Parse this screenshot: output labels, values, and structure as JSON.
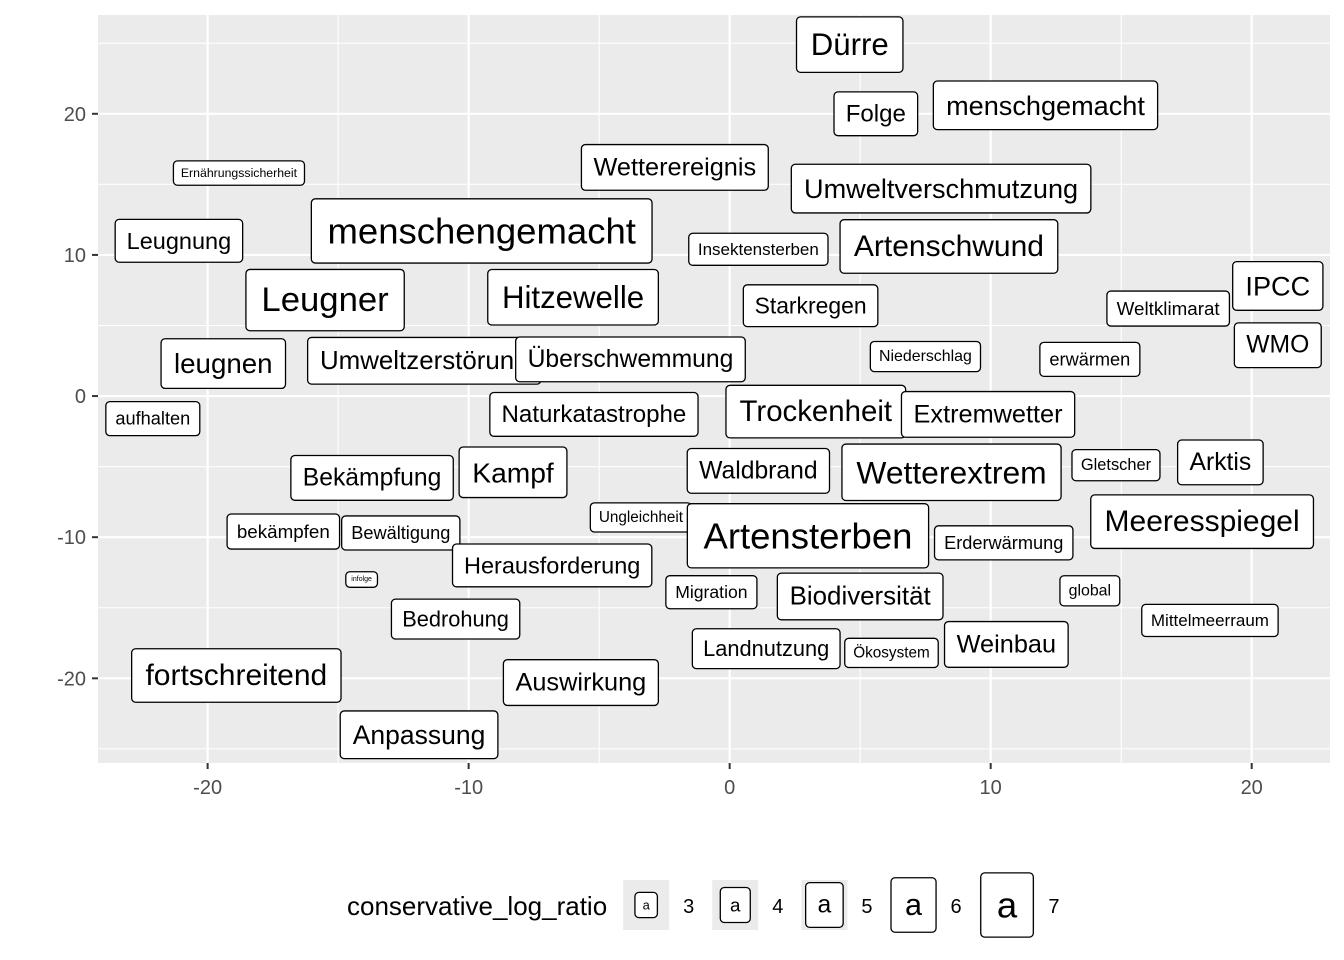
{
  "chart_data": {
    "type": "scatter",
    "geom": "label",
    "xlim": [
      -24.2,
      23
    ],
    "ylim": [
      -26,
      27
    ],
    "x_ticks": [
      -20,
      -10,
      0,
      10,
      20
    ],
    "y_ticks": [
      20,
      10,
      0,
      -10,
      -20
    ],
    "x_tick_labels": [
      "-20",
      "-10",
      "0",
      "10",
      "20"
    ],
    "y_tick_labels": [
      "20",
      "10",
      "0",
      "-10",
      "-20"
    ],
    "grid": true,
    "legend_position": "bottom",
    "legend": {
      "title": "conservative_log_ratio",
      "keys": [
        {
          "value": 3,
          "label": "3"
        },
        {
          "value": 4,
          "label": "4"
        },
        {
          "value": 5,
          "label": "5"
        },
        {
          "value": 6,
          "label": "6"
        },
        {
          "value": 7,
          "label": "7"
        }
      ],
      "glyph": "a"
    },
    "points": [
      {
        "label": "Dürre",
        "x": 4.6,
        "y": 24.9,
        "size": 6.1
      },
      {
        "label": "Folge",
        "x": 5.6,
        "y": 20.0,
        "size": 4.9
      },
      {
        "label": "menschgemacht",
        "x": 12.1,
        "y": 20.6,
        "size": 5.4
      },
      {
        "label": "Ernährungssicherheit",
        "x": -18.8,
        "y": 15.8,
        "size": 2.9
      },
      {
        "label": "Wetterereignis",
        "x": -2.1,
        "y": 16.2,
        "size": 5.1
      },
      {
        "label": "Umweltverschmutzung",
        "x": 8.1,
        "y": 14.7,
        "size": 5.4
      },
      {
        "label": "Leugnung",
        "x": -21.1,
        "y": 11.0,
        "size": 4.8
      },
      {
        "label": "menschengemacht",
        "x": -9.5,
        "y": 11.7,
        "size": 7.0
      },
      {
        "label": "Insektensterben",
        "x": 1.1,
        "y": 10.4,
        "size": 3.7
      },
      {
        "label": "Artenschwund",
        "x": 8.4,
        "y": 10.6,
        "size": 5.9
      },
      {
        "label": "IPCC",
        "x": 21.0,
        "y": 7.8,
        "size": 5.4
      },
      {
        "label": "Weltklimarat",
        "x": 16.8,
        "y": 6.2,
        "size": 4.0
      },
      {
        "label": "Leugner",
        "x": -15.5,
        "y": 6.8,
        "size": 6.7
      },
      {
        "label": "Hitzewelle",
        "x": -6.0,
        "y": 7.0,
        "size": 6.1
      },
      {
        "label": "Starkregen",
        "x": 3.1,
        "y": 6.4,
        "size": 4.7
      },
      {
        "label": "WMO",
        "x": 21.0,
        "y": 3.6,
        "size": 5.0
      },
      {
        "label": "leugnen",
        "x": -19.4,
        "y": 2.3,
        "size": 5.5
      },
      {
        "label": "Umweltzerstörung",
        "x": -11.7,
        "y": 2.5,
        "size": 5.2
      },
      {
        "label": "Überschwemmung",
        "x": -3.8,
        "y": 2.6,
        "size": 5.0
      },
      {
        "label": "Niederschlag",
        "x": 7.5,
        "y": 2.8,
        "size": 3.5
      },
      {
        "label": "erwärmen",
        "x": 13.8,
        "y": 2.6,
        "size": 3.9
      },
      {
        "label": "aufhalten",
        "x": -22.1,
        "y": -1.6,
        "size": 3.9
      },
      {
        "label": "Naturkatastrophe",
        "x": -5.2,
        "y": -1.3,
        "size": 4.9
      },
      {
        "label": "Trockenheit",
        "x": 3.3,
        "y": -1.1,
        "size": 5.8
      },
      {
        "label": "Extremwetter",
        "x": 9.9,
        "y": -1.3,
        "size": 5.1
      },
      {
        "label": "Bekämpfung",
        "x": -13.7,
        "y": -5.8,
        "size": 5.0
      },
      {
        "label": "Kampf",
        "x": -8.3,
        "y": -5.4,
        "size": 5.6
      },
      {
        "label": "Waldbrand",
        "x": 1.1,
        "y": -5.3,
        "size": 5.0
      },
      {
        "label": "Wetterextrem",
        "x": 8.5,
        "y": -5.4,
        "size": 6.2
      },
      {
        "label": "Gletscher",
        "x": 14.8,
        "y": -4.9,
        "size": 3.6
      },
      {
        "label": "Arktis",
        "x": 18.8,
        "y": -4.7,
        "size": 5.0
      },
      {
        "label": "bekämpfen",
        "x": -17.1,
        "y": -9.6,
        "size": 4.0
      },
      {
        "label": "Bewältigung",
        "x": -12.6,
        "y": -9.7,
        "size": 3.9
      },
      {
        "label": "Ungleichheit",
        "x": -3.4,
        "y": -8.6,
        "size": 3.4
      },
      {
        "label": "Artensterben",
        "x": 3.0,
        "y": -9.9,
        "size": 7.0
      },
      {
        "label": "Erderwärmung",
        "x": 10.5,
        "y": -10.4,
        "size": 3.9
      },
      {
        "label": "Meeresspiegel",
        "x": 18.1,
        "y": -8.9,
        "size": 5.9
      },
      {
        "label": "infolge",
        "x": -14.1,
        "y": -13.0,
        "size": 2.0
      },
      {
        "label": "Herausforderung",
        "x": -6.8,
        "y": -12.0,
        "size": 4.8
      },
      {
        "label": "Migration",
        "x": -0.7,
        "y": -13.9,
        "size": 3.8
      },
      {
        "label": "Biodiversität",
        "x": 5.0,
        "y": -14.2,
        "size": 5.2
      },
      {
        "label": "global",
        "x": 13.8,
        "y": -13.8,
        "size": 3.5
      },
      {
        "label": "Bedrohung",
        "x": -10.5,
        "y": -15.8,
        "size": 4.5
      },
      {
        "label": "Mittelmeerraum",
        "x": 18.4,
        "y": -15.9,
        "size": 3.7
      },
      {
        "label": "Landnutzung",
        "x": 1.4,
        "y": -17.9,
        "size": 4.5
      },
      {
        "label": "Ökosystem",
        "x": 6.2,
        "y": -18.2,
        "size": 3.4
      },
      {
        "label": "Weinbau",
        "x": 10.6,
        "y": -17.6,
        "size": 5.1
      },
      {
        "label": "fortschreitend",
        "x": -18.9,
        "y": -19.8,
        "size": 5.9
      },
      {
        "label": "Auswirkung",
        "x": -5.7,
        "y": -20.3,
        "size": 5.1
      },
      {
        "label": "Anpassung",
        "x": -11.9,
        "y": -24.0,
        "size": 5.3
      }
    ]
  }
}
